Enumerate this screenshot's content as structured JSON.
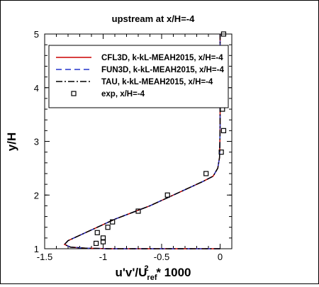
{
  "chart_data": {
    "type": "line",
    "title": "upstream at x/H=-4",
    "xlabel": "u'v'/U",
    "xlabel_sub": "ref",
    "xlabel_sup": "2",
    "xlabel_tail": " * 1000",
    "ylabel": "y/H",
    "xlim": [
      -1.5,
      0.1
    ],
    "ylim": [
      1,
      5
    ],
    "xticks": [
      -1.5,
      -1,
      -0.5,
      0
    ],
    "xtick_labels": [
      "-1.5",
      "-1",
      "-0.5",
      "0"
    ],
    "yticks": [
      1,
      2,
      3,
      4,
      5
    ],
    "ytick_labels": [
      "1",
      "2",
      "3",
      "4",
      "5"
    ],
    "grid": false,
    "legend_position": "top-left",
    "series": [
      {
        "name": "CFL3D, k-kL-MEAH2015, x/H=-4",
        "style": "solid",
        "color": "#cc0000",
        "x": [
          -0.0,
          -0.2,
          -0.45,
          -0.7,
          -0.95,
          -1.15,
          -1.28,
          -1.33,
          -1.3,
          -1.1,
          -0.9,
          -0.6,
          -0.35,
          -0.15,
          -0.06,
          -0.02,
          -0.005,
          -0.002,
          0.0,
          0.0,
          0.0,
          0.0,
          0.0,
          0.0,
          0.0
        ],
        "y": [
          1.0,
          1.0,
          1.0,
          1.0,
          1.0,
          1.01,
          1.03,
          1.08,
          1.15,
          1.35,
          1.55,
          1.8,
          2.05,
          2.25,
          2.35,
          2.5,
          2.7,
          3.0,
          3.3,
          3.6,
          3.9,
          4.2,
          4.5,
          4.8,
          5.0
        ]
      },
      {
        "name": "FUN3D, k-kL-MEAH2015, x/H=-4",
        "style": "dashed",
        "color": "#2233cc",
        "x": [
          -0.0,
          -0.2,
          -0.45,
          -0.7,
          -0.95,
          -1.15,
          -1.28,
          -1.33,
          -1.3,
          -1.1,
          -0.9,
          -0.6,
          -0.35,
          -0.15,
          -0.06,
          -0.02,
          -0.005,
          -0.002,
          0.0,
          0.0,
          0.0,
          0.0,
          0.0,
          0.0,
          0.0
        ],
        "y": [
          1.0,
          1.0,
          1.0,
          1.0,
          1.0,
          1.01,
          1.03,
          1.08,
          1.15,
          1.35,
          1.55,
          1.8,
          2.05,
          2.25,
          2.35,
          2.5,
          2.7,
          3.0,
          3.3,
          3.6,
          3.9,
          4.2,
          4.5,
          4.8,
          5.0
        ]
      },
      {
        "name": "TAU, k-kL-MEAH2015, x/H=-4",
        "style": "dashdot",
        "color": "#000000",
        "x": [
          -0.0,
          -0.2,
          -0.45,
          -0.7,
          -0.95,
          -1.15,
          -1.28,
          -1.33,
          -1.3,
          -1.1,
          -0.9,
          -0.6,
          -0.35,
          -0.15,
          -0.06,
          -0.02,
          -0.005,
          -0.002,
          0.0,
          0.0,
          0.0,
          0.0,
          0.0,
          0.0,
          0.0
        ],
        "y": [
          1.0,
          1.0,
          1.0,
          1.0,
          1.0,
          1.01,
          1.03,
          1.08,
          1.15,
          1.35,
          1.55,
          1.8,
          2.05,
          2.25,
          2.35,
          2.5,
          2.7,
          3.0,
          3.3,
          3.6,
          3.9,
          4.2,
          4.5,
          4.8,
          5.0
        ]
      },
      {
        "name": "exp, x/H=-4",
        "style": "markers",
        "marker": "square",
        "color": "#000000",
        "x": [
          -1.06,
          -1.05,
          -1.0,
          -1.0,
          -0.96,
          -0.92,
          -0.7,
          -0.45,
          -0.12,
          0.01,
          0.03,
          0.02,
          0.03,
          0.03
        ],
        "y": [
          1.1,
          1.3,
          1.2,
          1.13,
          1.4,
          1.5,
          1.7,
          2.0,
          2.4,
          2.8,
          3.2,
          3.6,
          4.5,
          5.0
        ]
      }
    ]
  }
}
